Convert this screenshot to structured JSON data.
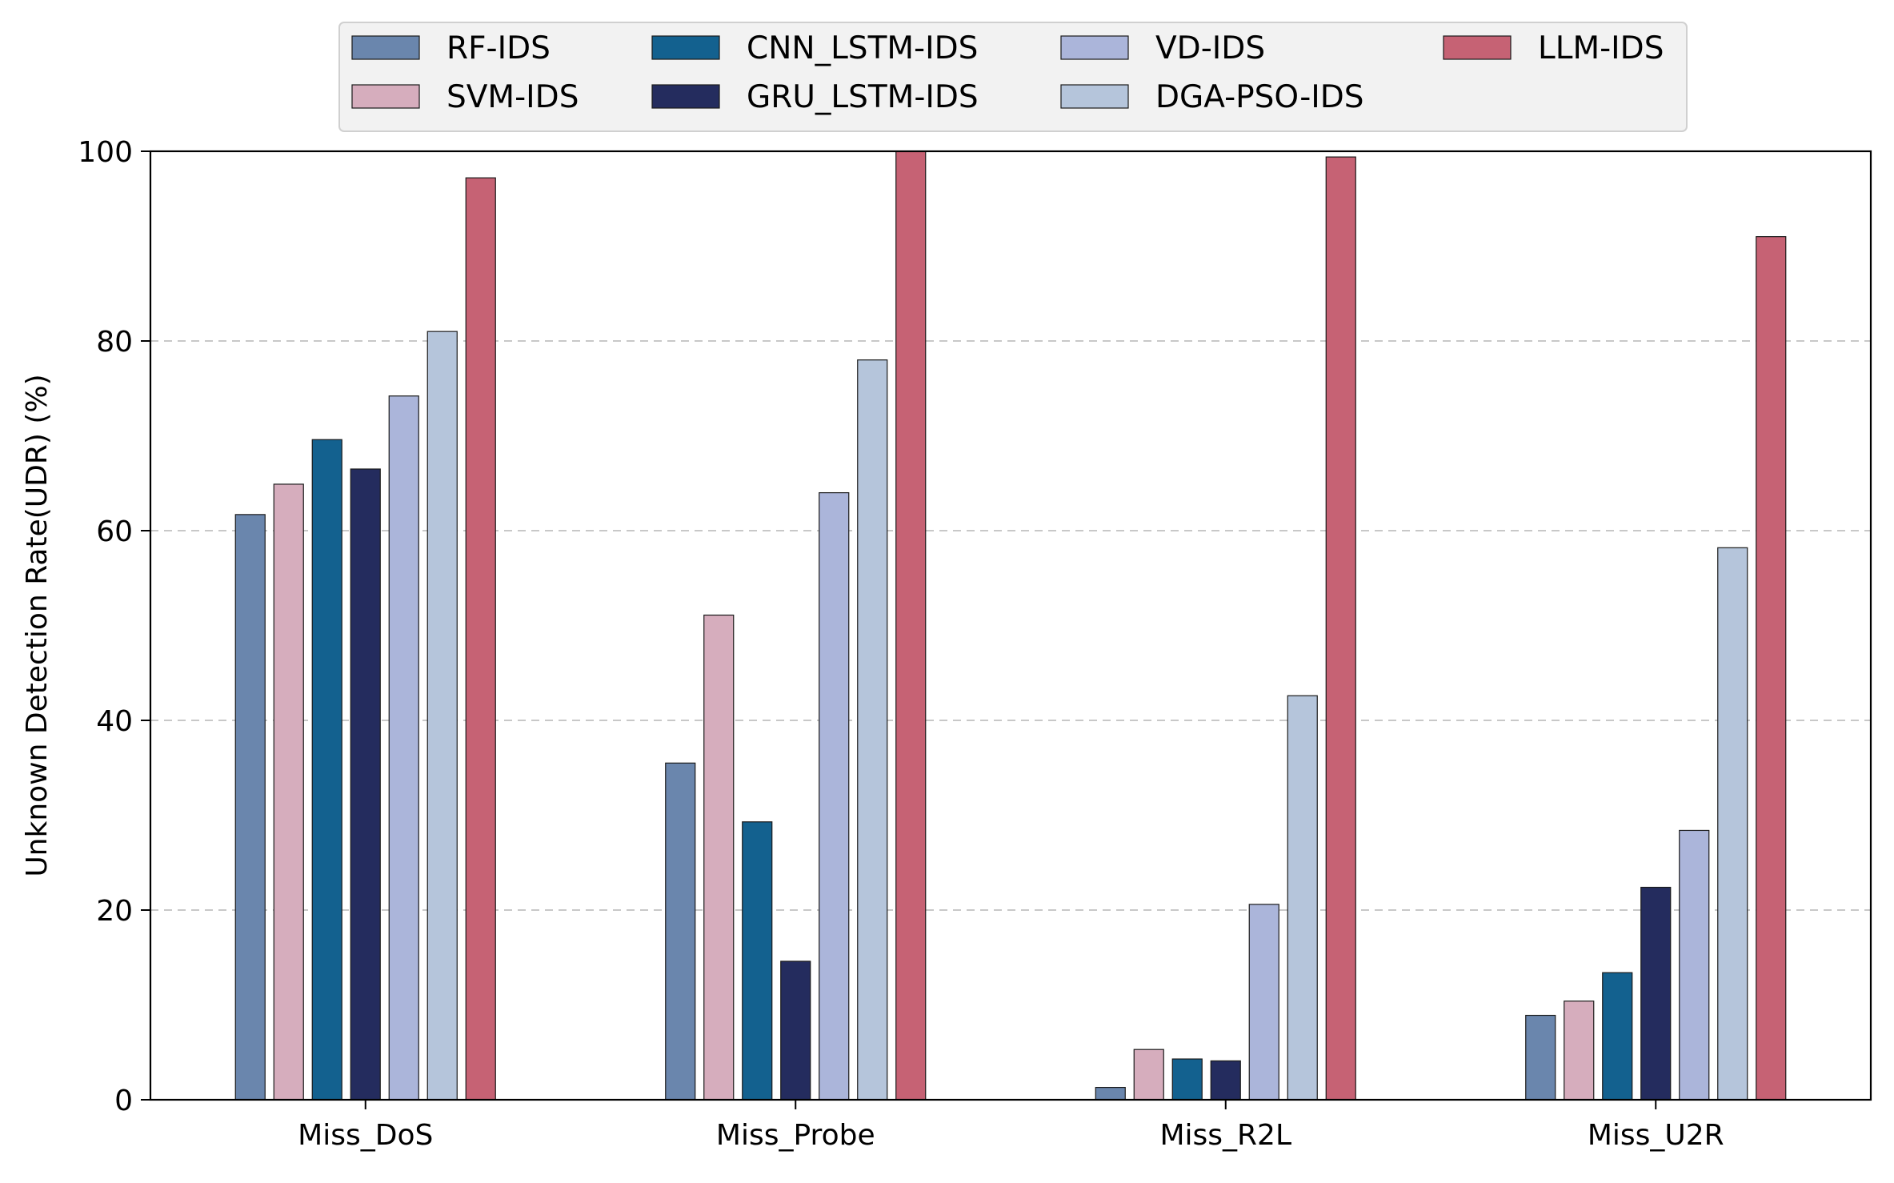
{
  "chart_data": {
    "type": "bar",
    "title": "",
    "xlabel": "",
    "ylabel": "Unknown Detection Rate(UDR) (%)",
    "ylim": [
      0,
      100
    ],
    "yticks": [
      0,
      20,
      40,
      60,
      80,
      100
    ],
    "grid": "y-dashed",
    "legend_position": "top-center",
    "categories": [
      "Miss_DoS",
      "Miss_Probe",
      "Miss_R2L",
      "Miss_U2R"
    ],
    "series": [
      {
        "name": "RF-IDS",
        "color": "#6a86ad",
        "values": [
          61.7,
          35.5,
          1.3,
          8.9
        ]
      },
      {
        "name": "SVM-IDS",
        "color": "#d6adbd",
        "values": [
          64.9,
          51.1,
          5.3,
          10.4
        ]
      },
      {
        "name": "CNN_LSTM-IDS",
        "color": "#13618f",
        "values": [
          69.6,
          29.3,
          4.3,
          13.4
        ]
      },
      {
        "name": "GRU_LSTM-IDS",
        "color": "#242c5e",
        "values": [
          66.5,
          14.6,
          4.1,
          22.4
        ]
      },
      {
        "name": "VD-IDS",
        "color": "#abb5da",
        "values": [
          74.2,
          64.0,
          20.6,
          28.4
        ]
      },
      {
        "name": "DGA-PSO-IDS",
        "color": "#b5c5db",
        "values": [
          81.0,
          78.0,
          42.6,
          58.2
        ]
      },
      {
        "name": "LLM-IDS",
        "color": "#c66274",
        "values": [
          97.2,
          100.0,
          99.4,
          91.0
        ]
      }
    ]
  }
}
